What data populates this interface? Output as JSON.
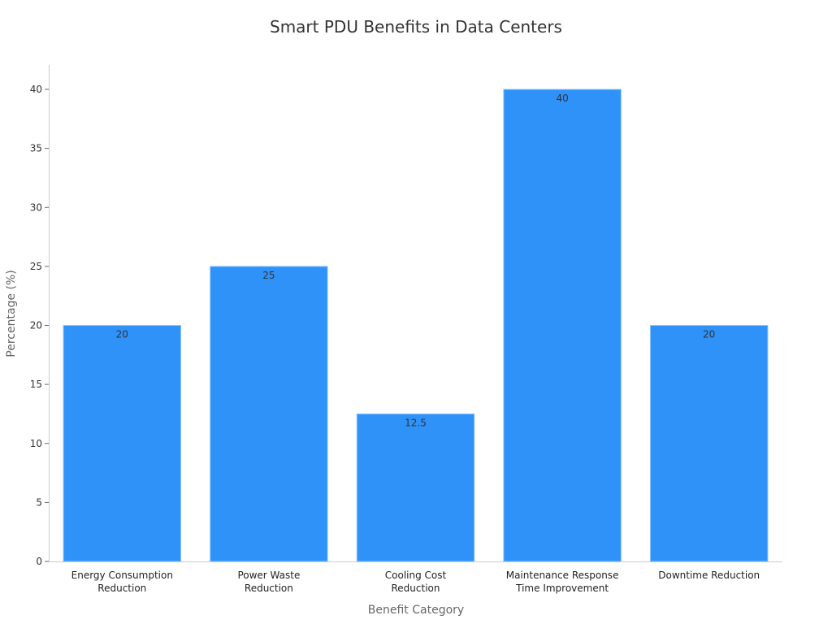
{
  "chart_data": {
    "type": "bar",
    "title": "Smart PDU Benefits in Data Centers",
    "xlabel": "Benefit Category",
    "ylabel": "Percentage (%)",
    "categories": [
      [
        "Energy Consumption",
        "Reduction"
      ],
      [
        "Power Waste",
        "Reduction"
      ],
      [
        "Cooling Cost",
        "Reduction"
      ],
      [
        "Maintenance Response",
        "Time Improvement"
      ],
      [
        "Downtime Reduction"
      ]
    ],
    "values": [
      20,
      25,
      12.5,
      40,
      20
    ],
    "data_labels": [
      "20",
      "25",
      "12.5",
      "40",
      "20"
    ],
    "ylim": [
      0,
      42
    ],
    "yticks": [
      0,
      5,
      10,
      15,
      20,
      25,
      30,
      35,
      40
    ],
    "grid": false,
    "bar_color": "#2F92F8"
  }
}
